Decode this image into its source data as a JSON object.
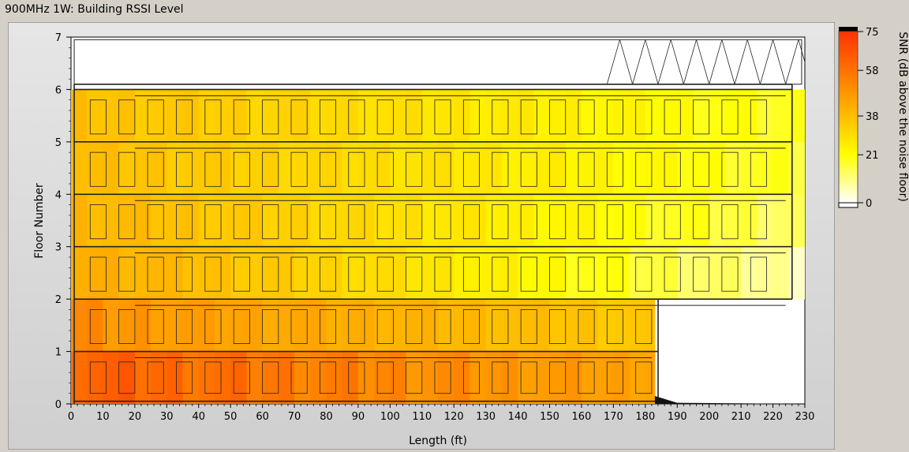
{
  "window": {
    "title": "900MHz 1W: Building RSSI Level"
  },
  "chart_data": {
    "type": "heatmap",
    "title": "",
    "xlabel": "Length (ft)",
    "ylabel": "Floor Number",
    "xlim": [
      0,
      230
    ],
    "ylim": [
      0,
      7
    ],
    "x_ticks": [
      0,
      10,
      20,
      30,
      40,
      50,
      60,
      70,
      80,
      90,
      100,
      110,
      120,
      130,
      140,
      150,
      160,
      170,
      180,
      190,
      200,
      210,
      220,
      230
    ],
    "y_ticks": [
      0,
      1,
      2,
      3,
      4,
      5,
      6,
      7
    ],
    "colorbar": {
      "label": "SNR (dB above the noise floor)",
      "ticks": [
        75,
        58,
        38,
        21,
        0
      ],
      "range": [
        0,
        75
      ],
      "colors": [
        "#ffffff",
        "#ffff00",
        "#ffa500",
        "#ff3300"
      ]
    },
    "regions": [
      {
        "floor_range": [
          0,
          1
        ],
        "x_range": [
          0,
          183
        ],
        "snr_left": 68,
        "snr_right": 55
      },
      {
        "floor_range": [
          1,
          2
        ],
        "x_range": [
          0,
          183
        ],
        "snr_left": 60,
        "snr_right": 40
      },
      {
        "floor_range": [
          2,
          3
        ],
        "x_range": [
          0,
          230
        ],
        "snr_left": 52,
        "snr_right": 6
      },
      {
        "floor_range": [
          3,
          4
        ],
        "x_range": [
          0,
          230
        ],
        "snr_left": 48,
        "snr_right": 12
      },
      {
        "floor_range": [
          4,
          5
        ],
        "x_range": [
          0,
          230
        ],
        "snr_left": 45,
        "snr_right": 16
      },
      {
        "floor_range": [
          5,
          6
        ],
        "x_range": [
          0,
          230
        ],
        "snr_left": 44,
        "snr_right": 17
      }
    ]
  }
}
